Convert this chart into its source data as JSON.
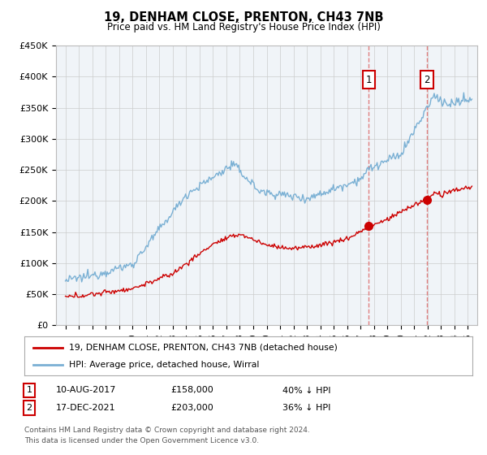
{
  "title": "19, DENHAM CLOSE, PRENTON, CH43 7NB",
  "subtitle": "Price paid vs. HM Land Registry's House Price Index (HPI)",
  "ylim": [
    0,
    450000
  ],
  "yticks": [
    0,
    50000,
    100000,
    150000,
    200000,
    250000,
    300000,
    350000,
    400000,
    450000
  ],
  "ytick_labels": [
    "£0",
    "£50K",
    "£100K",
    "£150K",
    "£200K",
    "£250K",
    "£300K",
    "£350K",
    "£400K",
    "£450K"
  ],
  "hpi_color": "#7ab0d4",
  "price_color": "#cc0000",
  "vline_color": "#e08080",
  "marker_color": "#cc0000",
  "sale1_date": "10-AUG-2017",
  "sale1_price": "£158,000",
  "sale1_label": "40% ↓ HPI",
  "sale1_x": 2017.62,
  "sale2_date": "17-DEC-2021",
  "sale2_price": "£203,000",
  "sale2_label": "36% ↓ HPI",
  "sale2_x": 2021.96,
  "legend1": "19, DENHAM CLOSE, PRENTON, CH43 7NB (detached house)",
  "legend2": "HPI: Average price, detached house, Wirral",
  "footnote1": "Contains HM Land Registry data © Crown copyright and database right 2024.",
  "footnote2": "This data is licensed under the Open Government Licence v3.0.",
  "annotation_box_color": "#cc0000",
  "background_color": "#f0f4f8"
}
